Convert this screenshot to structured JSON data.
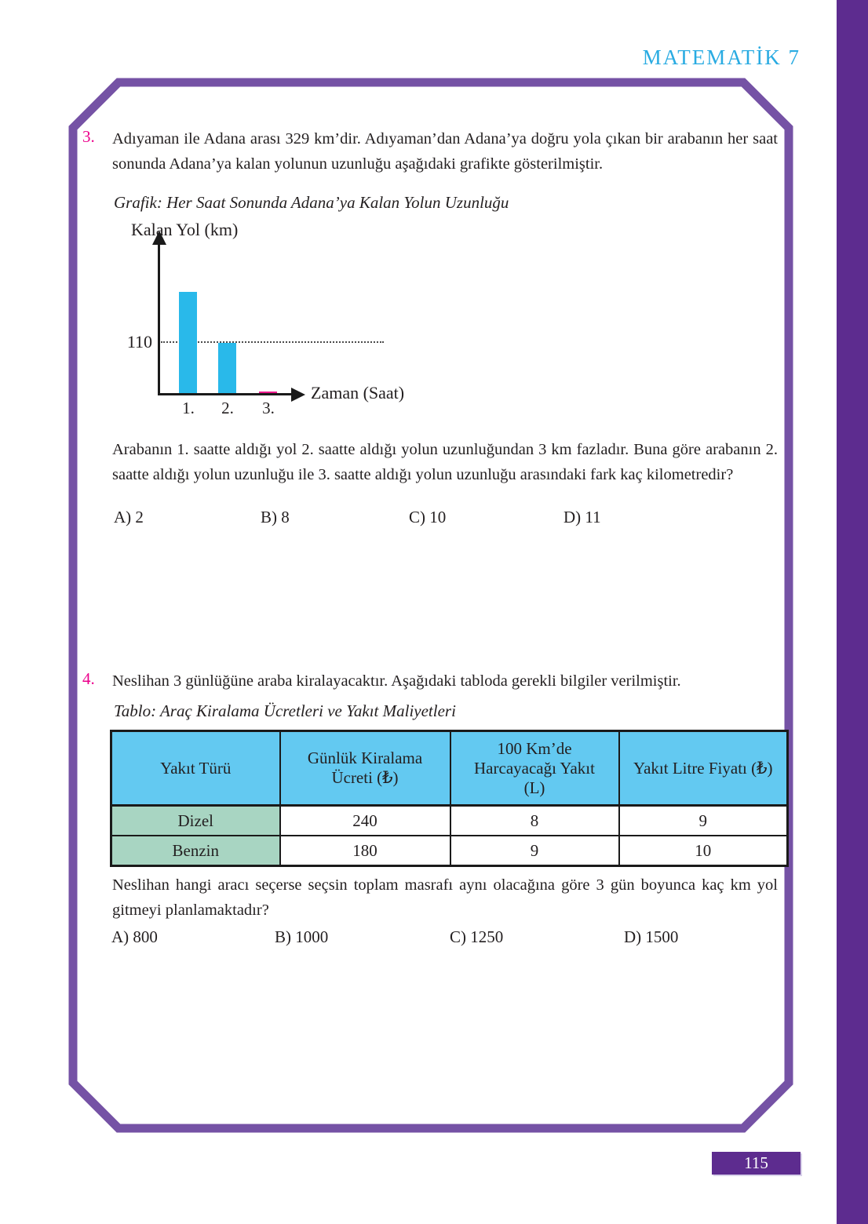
{
  "page": {
    "header_title": "MATEMATİK 7",
    "page_number": "115",
    "accent_colors": {
      "side_strip_purple": "#5d2c8f",
      "frame_purple": "#7552a5",
      "header_cyan": "#29abe2",
      "question_number_magenta": "#ec008c",
      "table_header_blue": "#63c9f1",
      "table_fuel_green": "#a8d5c2"
    }
  },
  "q3": {
    "number": "3.",
    "intro": "Adıyaman ile Adana arası 329 km’dir. Adıyaman’dan Adana’ya doğru yola çıkan bir arabanın her saat sonunda Adana’ya kalan yolunun uzunluğu aşağıdaki grafikte gösterilmiştir.",
    "followup": "Arabanın 1. saatte aldığı yol 2. saatte aldığı yolun uzunluğundan 3 km fazladır. Buna göre arabanın 2. saatte aldığı yolun uzunluğu ile 3. saatte aldığı yolun uzunluğu arasındaki fark kaç kilometredir?",
    "options": [
      "A) 2",
      "B) 8",
      "C) 10",
      "D) 11"
    ]
  },
  "chart_data": {
    "type": "bar",
    "title": "Grafik: Her Saat Sonunda Adana’ya Kalan Yolun Uzunluğu",
    "xlabel": "Zaman (Saat)",
    "ylabel": "Kalan Yol (km)",
    "categories": [
      "1.",
      "2.",
      "3."
    ],
    "values": [
      218,
      110,
      0
    ],
    "bar_colors": [
      "#29b9ea",
      "#29b9ea",
      "#ec188c"
    ],
    "ytick_label": "110",
    "ytick_value": 110,
    "grid": "dotted line at y=110",
    "legend": "none",
    "ylim": [
      0,
      260
    ]
  },
  "q4": {
    "number": "4.",
    "intro": "Neslihan 3 günlüğüne araba kiralayacaktır. Aşağıdaki tabloda gerekli bilgiler verilmiştir.",
    "table": {
      "caption": "Tablo: Araç Kiralama Ücretleri ve Yakıt Maliyetleri",
      "headers": [
        "Yakıt Türü",
        "Günlük Kiralama\nÜcreti (₺)",
        "100 Km’de\nHarcayacağı Yakıt\n(L)",
        "Yakıt Litre Fiyatı (₺)"
      ],
      "rows": [
        [
          "Dizel",
          "240",
          "8",
          "9"
        ],
        [
          "Benzin",
          "180",
          "9",
          "10"
        ]
      ]
    },
    "question": "Neslihan hangi aracı seçerse seçsin toplam masrafı aynı olacağına göre 3 gün boyunca kaç km yol gitmeyi planlamaktadır?",
    "options": [
      "A) 800",
      "B) 1000",
      "C) 1250",
      "D) 1500"
    ]
  }
}
